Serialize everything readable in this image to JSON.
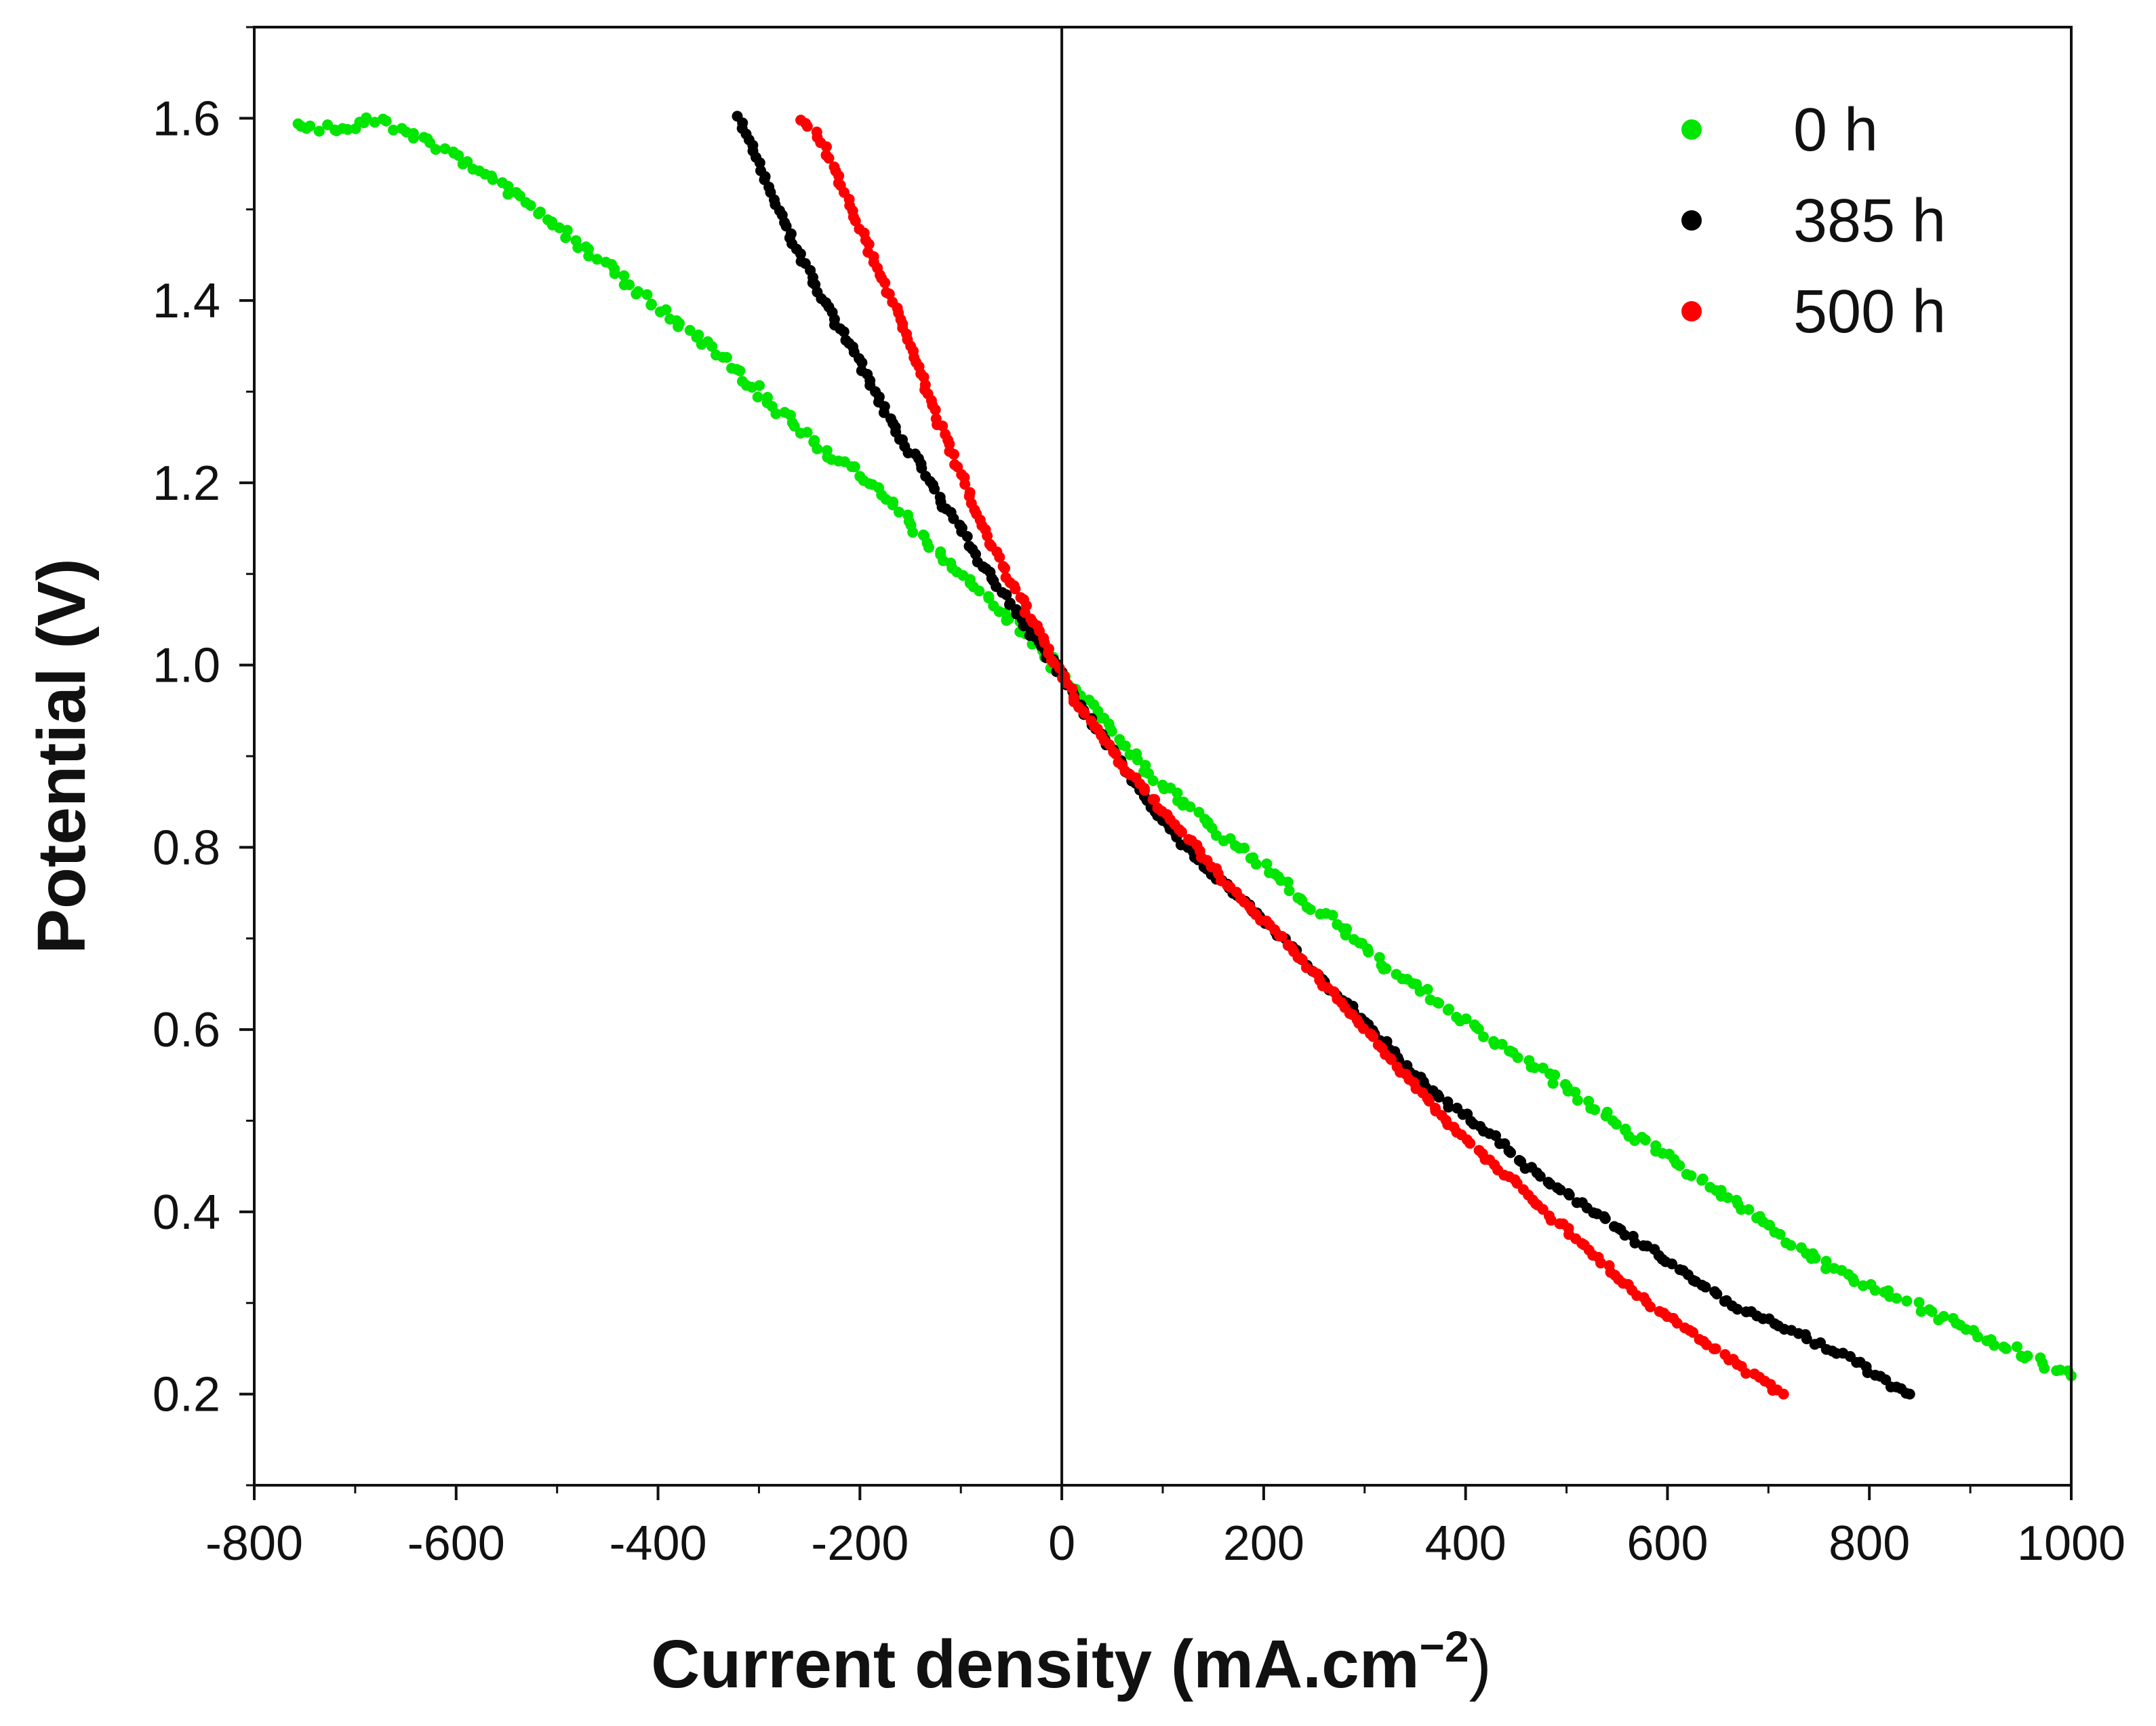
{
  "chart_data": {
    "type": "scatter",
    "title": "",
    "xlabel": "Current density (mA.cm",
    "xlabel_superscript": "−2",
    "xlabel_close": ")",
    "ylabel": "Potential (V)",
    "xlim": [
      -800,
      1000
    ],
    "ylim": [
      0.1,
      1.7
    ],
    "x_ticks": [
      -800,
      -600,
      -400,
      -200,
      0,
      200,
      400,
      600,
      800,
      1000
    ],
    "x_tick_labels": [
      "-800",
      "-600",
      "-400",
      "-200",
      "0",
      "200",
      "400",
      "600",
      "800",
      "1000"
    ],
    "y_ticks": [
      0.2,
      0.4,
      0.6,
      0.8,
      1.0,
      1.2,
      1.4,
      1.6
    ],
    "y_tick_labels": [
      "0.2",
      "0.4",
      "0.6",
      "0.8",
      "1.0",
      "1.2",
      "1.4",
      "1.6"
    ],
    "vertical_reference_x": 0,
    "grid": false,
    "legend_position": "top-right",
    "series": [
      {
        "name": "0 h",
        "color": "#00e600",
        "points": [
          [
            -760,
            1.59
          ],
          [
            -700,
            1.59
          ],
          [
            -680,
            1.6
          ],
          [
            -640,
            1.58
          ],
          [
            -600,
            1.56
          ],
          [
            -560,
            1.53
          ],
          [
            -520,
            1.5
          ],
          [
            -480,
            1.46
          ],
          [
            -440,
            1.43
          ],
          [
            -400,
            1.39
          ],
          [
            -360,
            1.36
          ],
          [
            -320,
            1.32
          ],
          [
            -280,
            1.28
          ],
          [
            -240,
            1.24
          ],
          [
            -200,
            1.21
          ],
          [
            -160,
            1.17
          ],
          [
            -120,
            1.12
          ],
          [
            -80,
            1.08
          ],
          [
            -40,
            1.04
          ],
          [
            0,
            0.99
          ],
          [
            40,
            0.94
          ],
          [
            80,
            0.89
          ],
          [
            120,
            0.85
          ],
          [
            160,
            0.81
          ],
          [
            200,
            0.78
          ],
          [
            240,
            0.74
          ],
          [
            280,
            0.71
          ],
          [
            320,
            0.67
          ],
          [
            360,
            0.64
          ],
          [
            400,
            0.61
          ],
          [
            440,
            0.58
          ],
          [
            480,
            0.55
          ],
          [
            520,
            0.52
          ],
          [
            560,
            0.49
          ],
          [
            600,
            0.46
          ],
          [
            640,
            0.43
          ],
          [
            680,
            0.4
          ],
          [
            720,
            0.37
          ],
          [
            760,
            0.34
          ],
          [
            800,
            0.32
          ],
          [
            840,
            0.3
          ],
          [
            880,
            0.28
          ],
          [
            920,
            0.26
          ],
          [
            960,
            0.24
          ],
          [
            1000,
            0.22
          ]
        ]
      },
      {
        "name": "385 h",
        "color": "#000000",
        "points": [
          [
            -320,
            1.6
          ],
          [
            -300,
            1.55
          ],
          [
            -280,
            1.5
          ],
          [
            -260,
            1.45
          ],
          [
            -240,
            1.41
          ],
          [
            -220,
            1.37
          ],
          [
            -200,
            1.33
          ],
          [
            -180,
            1.29
          ],
          [
            -160,
            1.25
          ],
          [
            -140,
            1.22
          ],
          [
            -120,
            1.18
          ],
          [
            -100,
            1.15
          ],
          [
            -80,
            1.11
          ],
          [
            -60,
            1.08
          ],
          [
            -40,
            1.05
          ],
          [
            -20,
            1.02
          ],
          [
            0,
            0.99
          ],
          [
            20,
            0.95
          ],
          [
            60,
            0.89
          ],
          [
            100,
            0.83
          ],
          [
            140,
            0.78
          ],
          [
            180,
            0.74
          ],
          [
            220,
            0.7
          ],
          [
            260,
            0.65
          ],
          [
            300,
            0.61
          ],
          [
            340,
            0.56
          ],
          [
            380,
            0.52
          ],
          [
            420,
            0.49
          ],
          [
            460,
            0.45
          ],
          [
            500,
            0.42
          ],
          [
            540,
            0.39
          ],
          [
            580,
            0.36
          ],
          [
            620,
            0.33
          ],
          [
            660,
            0.3
          ],
          [
            700,
            0.28
          ],
          [
            740,
            0.26
          ],
          [
            780,
            0.24
          ],
          [
            820,
            0.21
          ],
          [
            840,
            0.2
          ]
        ]
      },
      {
        "name": "500 h",
        "color": "#ff0000",
        "points": [
          [
            -260,
            1.6
          ],
          [
            -240,
            1.58
          ],
          [
            -220,
            1.53
          ],
          [
            -200,
            1.48
          ],
          [
            -180,
            1.43
          ],
          [
            -160,
            1.38
          ],
          [
            -140,
            1.32
          ],
          [
            -120,
            1.26
          ],
          [
            -100,
            1.21
          ],
          [
            -80,
            1.16
          ],
          [
            -60,
            1.11
          ],
          [
            -40,
            1.07
          ],
          [
            -20,
            1.03
          ],
          [
            0,
            0.99
          ],
          [
            20,
            0.95
          ],
          [
            60,
            0.89
          ],
          [
            100,
            0.84
          ],
          [
            140,
            0.79
          ],
          [
            180,
            0.74
          ],
          [
            220,
            0.7
          ],
          [
            260,
            0.65
          ],
          [
            300,
            0.6
          ],
          [
            340,
            0.55
          ],
          [
            380,
            0.5
          ],
          [
            420,
            0.46
          ],
          [
            460,
            0.42
          ],
          [
            500,
            0.38
          ],
          [
            540,
            0.34
          ],
          [
            580,
            0.3
          ],
          [
            620,
            0.27
          ],
          [
            660,
            0.24
          ],
          [
            700,
            0.21
          ],
          [
            715,
            0.2
          ]
        ]
      }
    ]
  }
}
